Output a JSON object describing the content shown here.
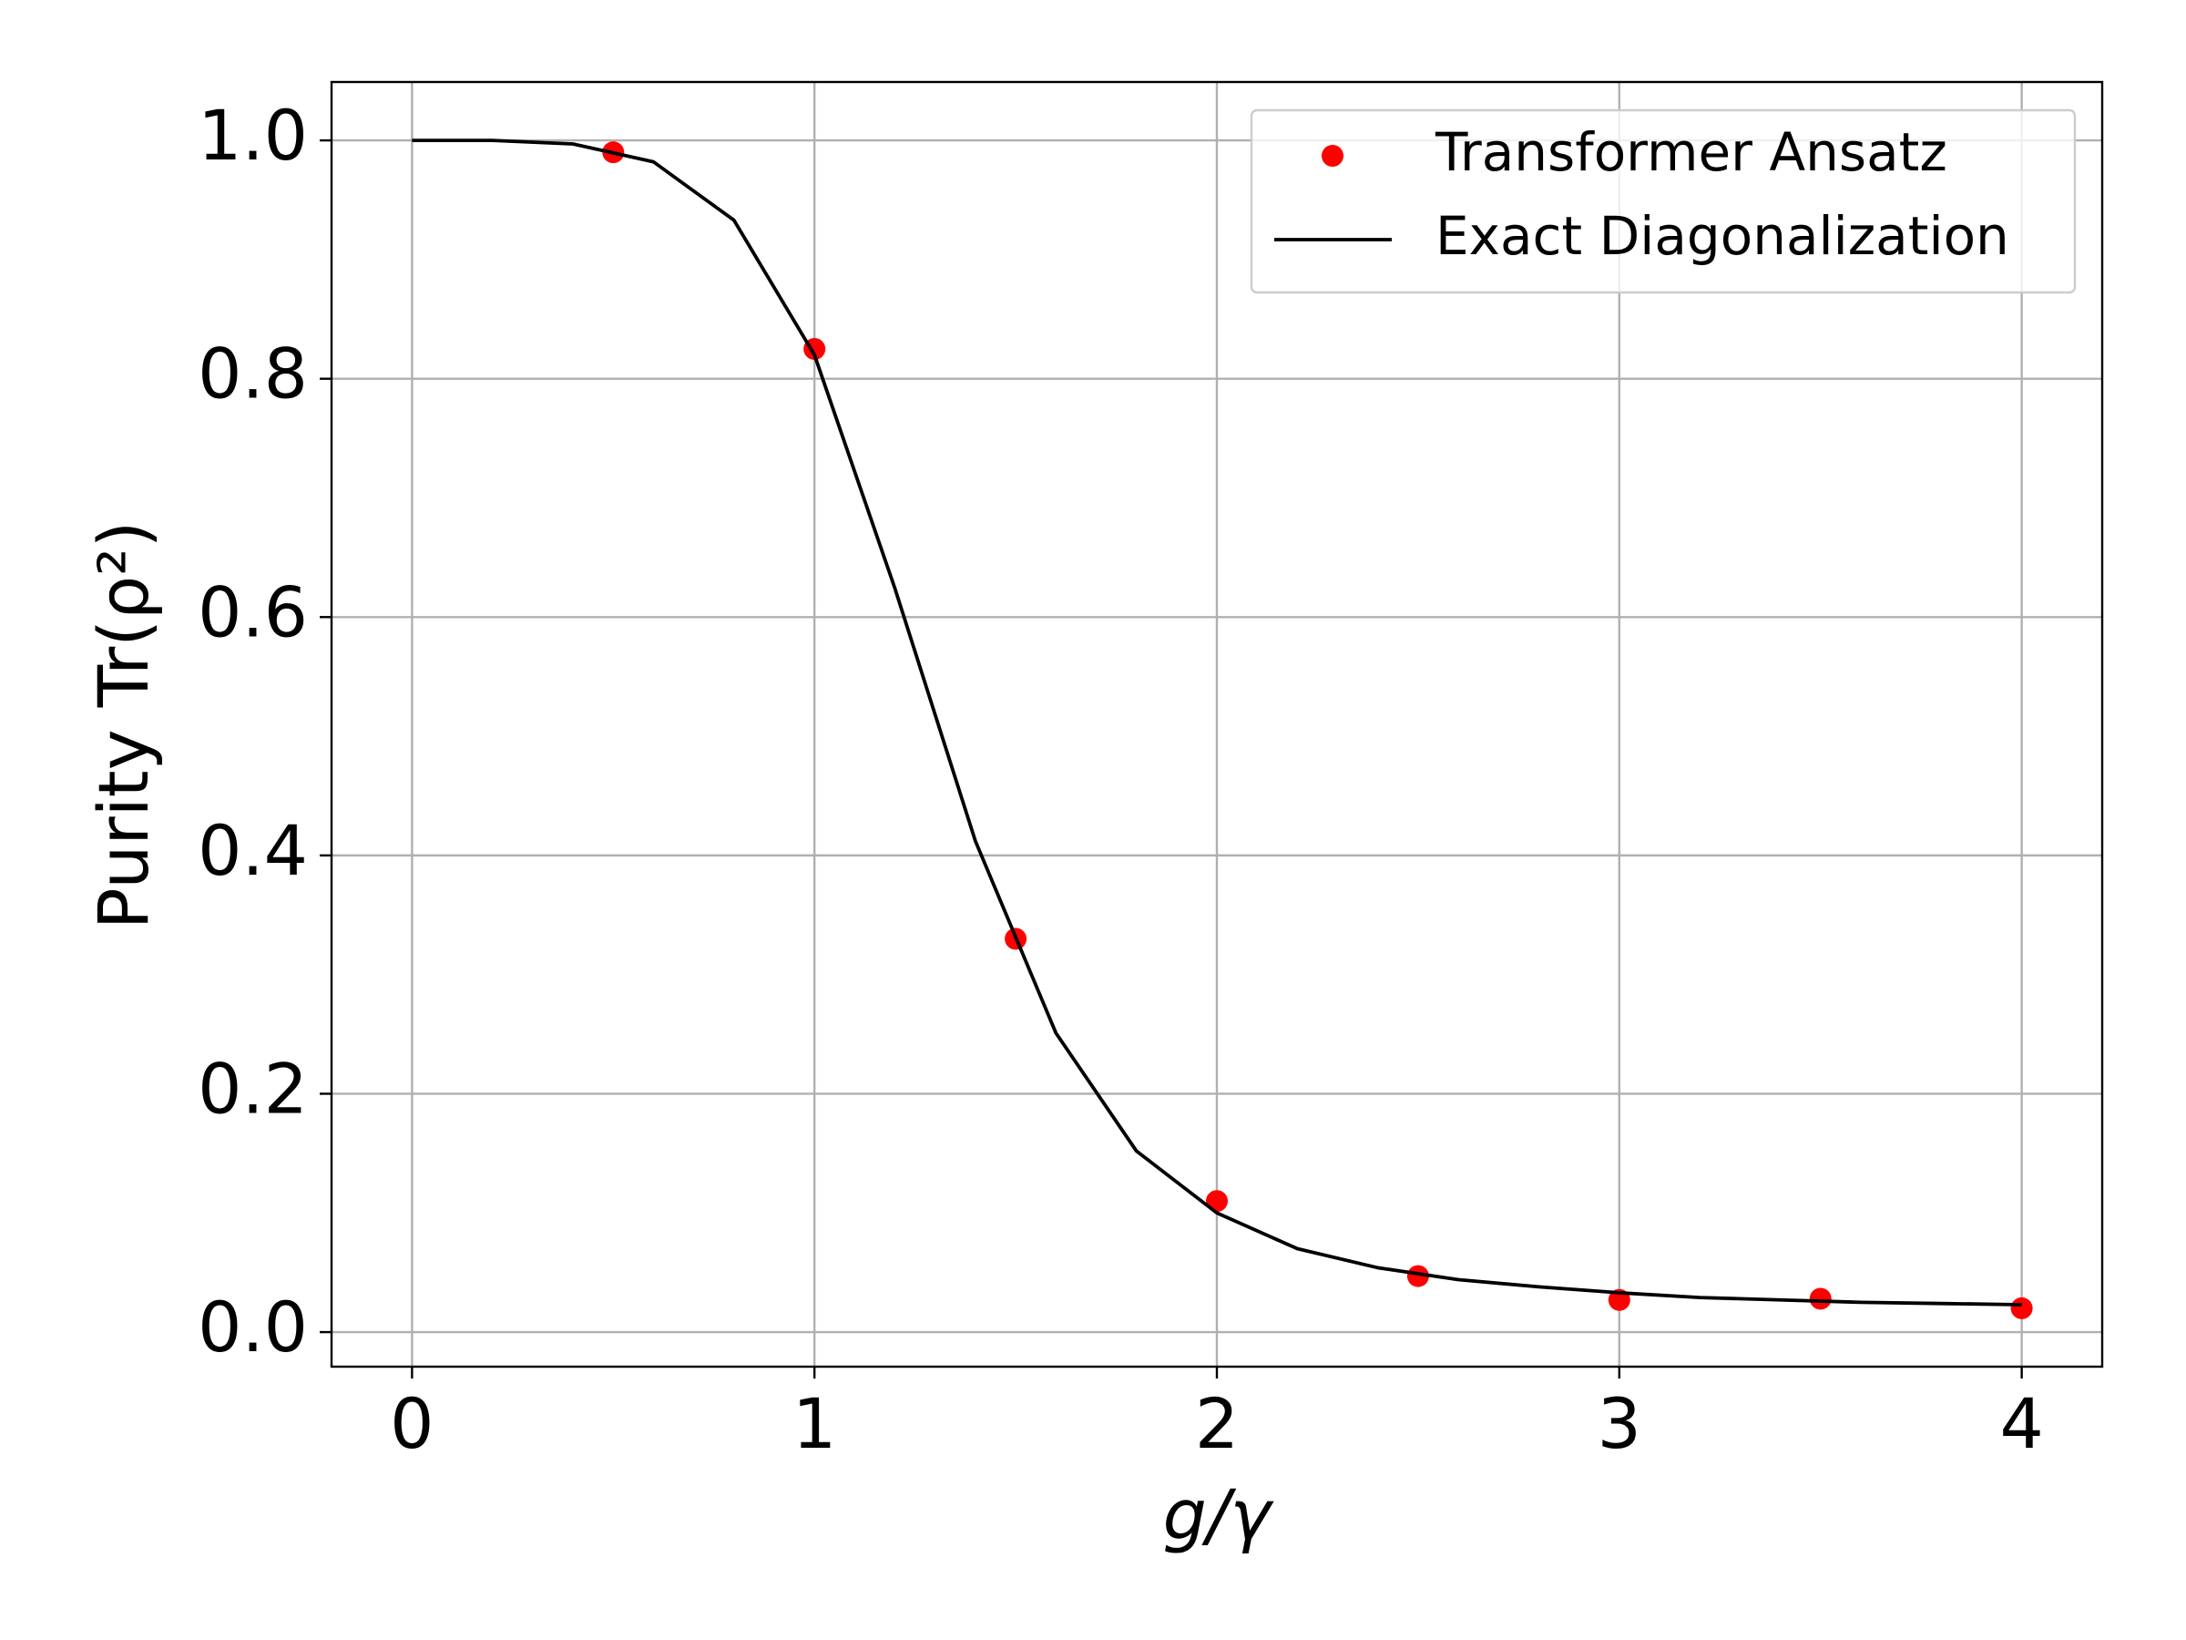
{
  "chart_data": {
    "type": "line",
    "xlabel": "g/γ",
    "ylabel": "Purity Tr(ρ²)",
    "xlim": [
      -0.2,
      4.2
    ],
    "ylim": [
      -0.029,
      1.049
    ],
    "xticks": [
      0,
      1,
      2,
      3,
      4
    ],
    "yticks": [
      {
        "value": 0,
        "label": "0.0"
      },
      {
        "value": 0.2,
        "label": "0.2"
      },
      {
        "value": 0.4,
        "label": "0.4"
      },
      {
        "value": 0.6,
        "label": "0.6"
      },
      {
        "value": 0.8,
        "label": "0.8"
      },
      {
        "value": 1,
        "label": "1.0"
      }
    ],
    "grid": true,
    "legend": "upper right",
    "series": [
      {
        "name": "Transformer Ansatz",
        "type": "scatter",
        "color": "#ff0000",
        "x": [
          0.5,
          1,
          1.5,
          2,
          2.5,
          3,
          3.5,
          4
        ],
        "values": [
          0.99,
          0.825,
          0.33,
          0.11,
          0.047,
          0.027,
          0.028,
          0.02
        ]
      },
      {
        "name": "Exact Diagonalization",
        "type": "line",
        "color": "#000000",
        "x": [
          0,
          0.2,
          0.4,
          0.6,
          0.8,
          1,
          1.2,
          1.4,
          1.6,
          1.8,
          2,
          2.2,
          2.4,
          2.6,
          2.8,
          3,
          3.2,
          3.4,
          3.6,
          3.8,
          4
        ],
        "values": [
          1.0,
          1.0,
          0.997,
          0.982,
          0.933,
          0.82,
          0.624,
          0.412,
          0.251,
          0.152,
          0.1,
          0.07,
          0.054,
          0.044,
          0.038,
          0.033,
          0.029,
          0.027,
          0.025,
          0.024,
          0.023
        ]
      }
    ]
  }
}
